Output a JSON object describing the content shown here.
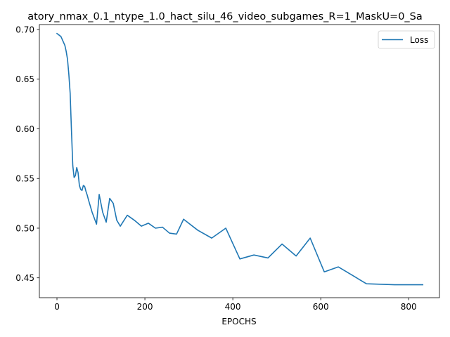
{
  "chart_data": {
    "type": "line",
    "title": "atory_nmax_0.1_ntype_1.0_hact_silu_46_video_subgames_R=1_MaskU=0_Sa",
    "xlabel": "EPOCHS",
    "ylabel": "",
    "xlim": [
      -40,
      870
    ],
    "ylim": [
      0.43,
      0.705
    ],
    "x_ticks": [
      0,
      200,
      400,
      600,
      800
    ],
    "y_ticks": [
      0.45,
      0.5,
      0.55,
      0.6,
      0.65,
      0.7
    ],
    "x_tick_labels": [
      "0",
      "200",
      "400",
      "600",
      "800"
    ],
    "y_tick_labels": [
      "0.45",
      "0.50",
      "0.55",
      "0.60",
      "0.65",
      "0.70"
    ],
    "grid": false,
    "legend_position": "top-right",
    "series_color": "#1f77b4",
    "series": [
      {
        "name": "Loss",
        "x": [
          0,
          3,
          6,
          9,
          12,
          15,
          18,
          21,
          24,
          27,
          30,
          33,
          36,
          39,
          42,
          45,
          48,
          51,
          54,
          57,
          60,
          63,
          66,
          69,
          72,
          80,
          90,
          96,
          104,
          112,
          120,
          128,
          136,
          144,
          160,
          176,
          192,
          208,
          224,
          240,
          256,
          272,
          288,
          320,
          352,
          384,
          416,
          448,
          480,
          512,
          544,
          576,
          608,
          640,
          704,
          768,
          832
        ],
        "y": [
          0.696,
          0.695,
          0.694,
          0.693,
          0.69,
          0.687,
          0.684,
          0.678,
          0.67,
          0.655,
          0.636,
          0.598,
          0.563,
          0.551,
          0.553,
          0.561,
          0.556,
          0.543,
          0.539,
          0.538,
          0.543,
          0.542,
          0.537,
          0.533,
          0.528,
          0.516,
          0.504,
          0.534,
          0.516,
          0.506,
          0.53,
          0.525,
          0.508,
          0.502,
          0.513,
          0.508,
          0.502,
          0.505,
          0.5,
          0.501,
          0.495,
          0.494,
          0.509,
          0.498,
          0.49,
          0.5,
          0.469,
          0.473,
          0.47,
          0.484,
          0.472,
          0.49,
          0.456,
          0.461,
          0.444,
          0.443,
          0.443
        ]
      }
    ]
  }
}
